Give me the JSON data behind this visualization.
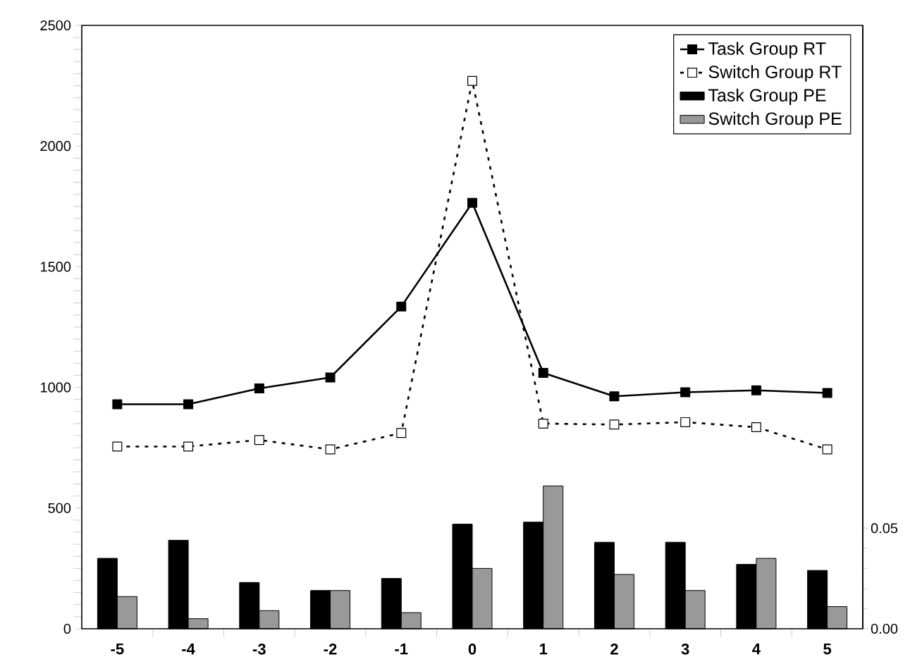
{
  "chart_data": {
    "type": "line",
    "categories": [
      "-5",
      "-4",
      "-3",
      "-2",
      "-1",
      "0",
      "1",
      "2",
      "3",
      "4",
      "5"
    ],
    "ylim": [
      0,
      2500
    ],
    "yticks": [
      0,
      500,
      1000,
      1500,
      2000,
      2500
    ],
    "y2lim": [
      0,
      0.3
    ],
    "y2ticks": [
      {
        "value": 0,
        "label": "0.00"
      },
      {
        "value": 0.05,
        "label": "0.05"
      }
    ],
    "legend": "top right",
    "grid": false,
    "marker": "square",
    "series": [
      {
        "name": "Task Group RT",
        "color": "#000000",
        "line_style": "solid",
        "values": [
          930,
          930,
          996,
          1041,
          1335,
          1765,
          1060,
          963,
          980,
          988,
          977
        ]
      },
      {
        "name": "Switch Group RT",
        "color": "#000000",
        "line_style": "dotted",
        "values": [
          755,
          755,
          782,
          743,
          811,
          2270,
          850,
          846,
          856,
          835,
          743
        ]
      },
      {
        "name": "Task Group PE",
        "type": "bar",
        "axis": "y2",
        "color": "#000000",
        "values": [
          0.035,
          0.044,
          0.023,
          0.019,
          0.025,
          0.052,
          0.053,
          0.043,
          0.043,
          0.032,
          0.029
        ]
      },
      {
        "name": "Switch Group PE",
        "type": "bar",
        "axis": "y2",
        "color": "#999999",
        "values": [
          0.016,
          0.005,
          0.009,
          0.019,
          0.008,
          0.03,
          0.071,
          0.027,
          0.019,
          0.035,
          0.011
        ]
      }
    ]
  }
}
